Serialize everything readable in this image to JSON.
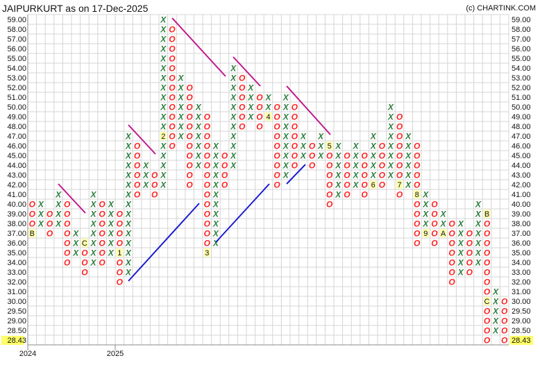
{
  "header": {
    "title": "JAIPURKURT as on 17-Dec-2025",
    "copyright": "(c) CHARTINK.COM"
  },
  "chart_data": {
    "type": "point-and-figure",
    "title": "JAIPURKURT as on 17-Dec-2025",
    "price_levels": [
      "59.00",
      "58.00",
      "57.00",
      "56.00",
      "55.00",
      "54.00",
      "53.00",
      "52.00",
      "51.00",
      "50.00",
      "49.00",
      "48.00",
      "47.00",
      "46.00",
      "45.00",
      "44.00",
      "43.00",
      "42.00",
      "41.00",
      "40.00",
      "39.00",
      "38.00",
      "37.00",
      "36.00",
      "35.00",
      "34.00",
      "33.00",
      "32.00",
      "31.00",
      "30.00",
      "29.50",
      "29.00",
      "28.50",
      "28.43"
    ],
    "last_price": "28.43",
    "x_tick_labels": [
      {
        "label": "2024",
        "column": 0
      },
      {
        "label": "2025",
        "column": 10
      }
    ],
    "grid": true,
    "colors": {
      "x": "#2a7d3c",
      "o": "#ff2222",
      "downtrend": "#c0168c",
      "uptrend": "#1a1ad0",
      "month_marker_bg": "#ffffb0",
      "last_price_bg": "#ffff66"
    },
    "columns": [
      {
        "type": "O",
        "high": 40,
        "low": 37,
        "markers": {
          "37": "B"
        }
      },
      {
        "type": "X",
        "high": 40,
        "low": 38
      },
      {
        "type": "O",
        "high": 39,
        "low": 37
      },
      {
        "type": "X",
        "high": 41,
        "low": 38
      },
      {
        "type": "O",
        "high": 40,
        "low": 34
      },
      {
        "type": "X",
        "high": 37,
        "low": 35
      },
      {
        "type": "O",
        "high": 36,
        "low": 33,
        "markers": {
          "36": "C"
        }
      },
      {
        "type": "X",
        "high": 41,
        "low": 34
      },
      {
        "type": "O",
        "high": 40,
        "low": 34
      },
      {
        "type": "X",
        "high": 40,
        "low": 35
      },
      {
        "type": "O",
        "high": 39,
        "low": 32,
        "markers": {
          "35": "1"
        }
      },
      {
        "type": "X",
        "high": 47,
        "low": 33
      },
      {
        "type": "O",
        "high": 46,
        "low": 41
      },
      {
        "type": "X",
        "high": 44,
        "low": 42
      },
      {
        "type": "O",
        "high": 43,
        "low": 41
      },
      {
        "type": "X",
        "high": 59,
        "low": 42,
        "markers": {
          "47": "2"
        }
      },
      {
        "type": "O",
        "high": 58,
        "low": 46
      },
      {
        "type": "X",
        "high": 53,
        "low": 47
      },
      {
        "type": "O",
        "high": 52,
        "low": 42
      },
      {
        "type": "X",
        "high": 50,
        "low": 44
      },
      {
        "type": "O",
        "high": 49,
        "low": 35,
        "markers": {
          "35": "3"
        }
      },
      {
        "type": "X",
        "high": 46,
        "low": 36
      },
      {
        "type": "O",
        "high": 45,
        "low": 42
      },
      {
        "type": "X",
        "high": 54,
        "low": 44
      },
      {
        "type": "O",
        "high": 53,
        "low": 48
      },
      {
        "type": "X",
        "high": 52,
        "low": 49
      },
      {
        "type": "O",
        "high": 51,
        "low": 48
      },
      {
        "type": "X",
        "high": 51,
        "low": 49,
        "markers": {
          "49": "4"
        }
      },
      {
        "type": "O",
        "high": 50,
        "low": 42
      },
      {
        "type": "X",
        "high": 51,
        "low": 43
      },
      {
        "type": "O",
        "high": 50,
        "low": 44
      },
      {
        "type": "X",
        "high": 47,
        "low": 45
      },
      {
        "type": "O",
        "high": 46,
        "low": 44
      },
      {
        "type": "X",
        "high": 47,
        "low": 45
      },
      {
        "type": "O",
        "high": 46,
        "low": 40,
        "markers": {
          "46": "5"
        }
      },
      {
        "type": "X",
        "high": 46,
        "low": 41
      },
      {
        "type": "O",
        "high": 45,
        "low": 41
      },
      {
        "type": "X",
        "high": 46,
        "low": 42
      },
      {
        "type": "O",
        "high": 45,
        "low": 41
      },
      {
        "type": "X",
        "high": 47,
        "low": 42,
        "markers": {
          "42": "6"
        }
      },
      {
        "type": "O",
        "high": 46,
        "low": 42
      },
      {
        "type": "X",
        "high": 50,
        "low": 43
      },
      {
        "type": "O",
        "high": 49,
        "low": 41,
        "markers": {
          "42": "7"
        }
      },
      {
        "type": "X",
        "high": 47,
        "low": 42
      },
      {
        "type": "O",
        "high": 46,
        "low": 36,
        "markers": {
          "41": "8"
        }
      },
      {
        "type": "X",
        "high": 41,
        "low": 37,
        "markers": {
          "37": "9"
        }
      },
      {
        "type": "O",
        "high": 40,
        "low": 36
      },
      {
        "type": "X",
        "high": 39,
        "low": 37,
        "markers": {
          "37": "A"
        }
      },
      {
        "type": "O",
        "high": 38,
        "low": 32
      },
      {
        "type": "X",
        "high": 38,
        "low": 33
      },
      {
        "type": "O",
        "high": 37,
        "low": 33
      },
      {
        "type": "X",
        "high": 40,
        "low": 34
      },
      {
        "type": "O",
        "high": 39,
        "low": 28.43,
        "markers": {
          "39": "B",
          "30": "C"
        }
      },
      {
        "type": "X",
        "high": 31,
        "low": 28.5
      },
      {
        "type": "O",
        "high": 30,
        "low": 28.43
      }
    ]
  }
}
